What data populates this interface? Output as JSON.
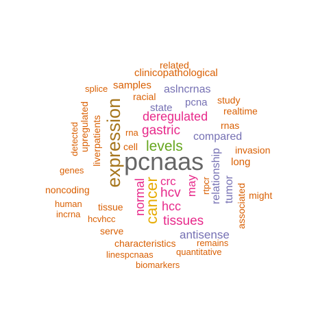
{
  "colors": {
    "orange": "#d95f02",
    "purple": "#7570b3",
    "magenta": "#e7298a",
    "green": "#66a61e",
    "gold": "#e6ab02",
    "olive": "#a6761d",
    "gray": "#666666"
  },
  "words": [
    {
      "text": "pcnaas",
      "color": "gray"
    },
    {
      "text": "expression",
      "color": "olive"
    },
    {
      "text": "cancer",
      "color": "gold"
    },
    {
      "text": "normal",
      "color": "magenta"
    },
    {
      "text": "levels",
      "color": "green"
    },
    {
      "text": "gastric",
      "color": "magenta"
    },
    {
      "text": "deregulated",
      "color": "magenta"
    },
    {
      "text": "tissues",
      "color": "magenta"
    },
    {
      "text": "hcv",
      "color": "magenta"
    },
    {
      "text": "hcc",
      "color": "magenta"
    },
    {
      "text": "crc",
      "color": "magenta"
    },
    {
      "text": "may",
      "color": "magenta"
    },
    {
      "text": "antisense",
      "color": "purple"
    },
    {
      "text": "compared",
      "color": "purple"
    },
    {
      "text": "relationship",
      "color": "purple"
    },
    {
      "text": "tumor",
      "color": "purple"
    },
    {
      "text": "state",
      "color": "purple"
    },
    {
      "text": "pcna",
      "color": "purple"
    },
    {
      "text": "aslncrnas",
      "color": "purple"
    },
    {
      "text": "related",
      "color": "orange"
    },
    {
      "text": "clinicopathological",
      "color": "orange"
    },
    {
      "text": "samples",
      "color": "orange"
    },
    {
      "text": "splice",
      "color": "orange"
    },
    {
      "text": "racial",
      "color": "orange"
    },
    {
      "text": "study",
      "color": "orange"
    },
    {
      "text": "realtime",
      "color": "orange"
    },
    {
      "text": "rnas",
      "color": "orange"
    },
    {
      "text": "invasion",
      "color": "orange"
    },
    {
      "text": "long",
      "color": "orange"
    },
    {
      "text": "might",
      "color": "orange"
    },
    {
      "text": "associated",
      "color": "orange"
    },
    {
      "text": "remains",
      "color": "orange"
    },
    {
      "text": "quantitative",
      "color": "orange"
    },
    {
      "text": "biomarkers",
      "color": "orange"
    },
    {
      "text": "linespcnaas",
      "color": "orange"
    },
    {
      "text": "characteristics",
      "color": "orange"
    },
    {
      "text": "serve",
      "color": "orange"
    },
    {
      "text": "hcvhcc",
      "color": "orange"
    },
    {
      "text": "incrna",
      "color": "orange"
    },
    {
      "text": "human",
      "color": "orange"
    },
    {
      "text": "noncoding",
      "color": "orange"
    },
    {
      "text": "tissue",
      "color": "orange"
    },
    {
      "text": "genes",
      "color": "orange"
    },
    {
      "text": "detected",
      "color": "orange"
    },
    {
      "text": "upregulated",
      "color": "orange"
    },
    {
      "text": "liverpatients",
      "color": "orange"
    },
    {
      "text": "rna",
      "color": "orange"
    },
    {
      "text": "cell",
      "color": "orange"
    },
    {
      "text": "rtpcr",
      "color": "orange"
    }
  ]
}
